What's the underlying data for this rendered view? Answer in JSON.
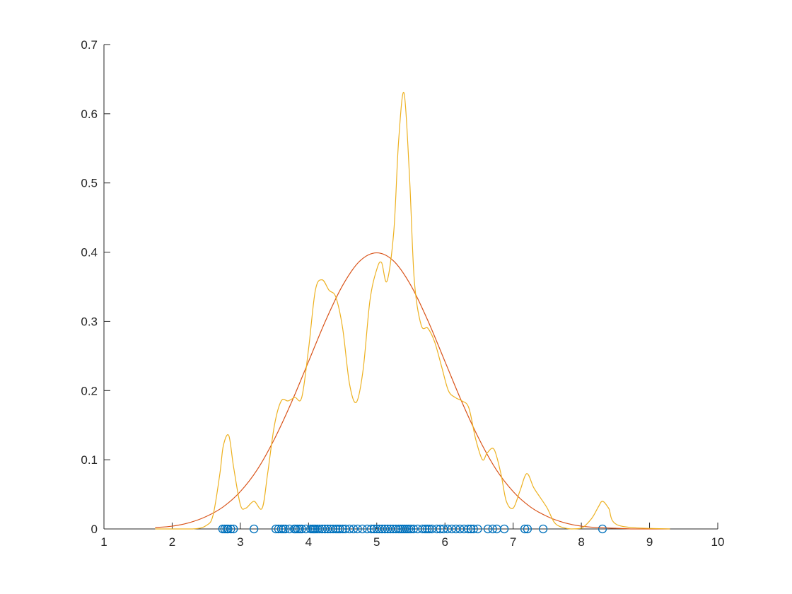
{
  "chart_data": {
    "type": "line",
    "title": "",
    "xlabel": "",
    "ylabel": "",
    "xlim": [
      1,
      10
    ],
    "ylim": [
      0,
      0.7
    ],
    "grid": false,
    "x_ticks": [
      1,
      2,
      3,
      4,
      5,
      6,
      7,
      8,
      9,
      10
    ],
    "y_ticks": [
      0,
      0.1,
      0.2,
      0.3,
      0.4,
      0.5,
      0.6,
      0.7
    ],
    "x_tick_labels": [
      "1",
      "2",
      "3",
      "4",
      "5",
      "6",
      "7",
      "8",
      "9",
      "10"
    ],
    "y_tick_labels": [
      "0",
      "0.1",
      "0.2",
      "0.3",
      "0.4",
      "0.5",
      "0.6",
      "0.7"
    ],
    "colors": {
      "samples": "#0072BD",
      "normal_pdf": "#D95319",
      "kernel_density": "#EDB120",
      "axes": "#262626"
    },
    "series": [
      {
        "role": "samples",
        "style": "markers-circle",
        "x": [
          2.74,
          2.77,
          2.8,
          2.82,
          2.86,
          2.9,
          3.2,
          3.52,
          3.56,
          3.6,
          3.63,
          3.66,
          3.72,
          3.79,
          3.81,
          3.84,
          3.87,
          3.9,
          3.96,
          4.03,
          4.06,
          4.08,
          4.1,
          4.13,
          4.16,
          4.2,
          4.24,
          4.28,
          4.32,
          4.36,
          4.4,
          4.43,
          4.46,
          4.5,
          4.54,
          4.6,
          4.66,
          4.72,
          4.79,
          4.86,
          4.92,
          4.96,
          5.0,
          5.04,
          5.08,
          5.12,
          5.16,
          5.2,
          5.24,
          5.28,
          5.32,
          5.35,
          5.38,
          5.41,
          5.44,
          5.47,
          5.5,
          5.54,
          5.6,
          5.67,
          5.71,
          5.74,
          5.77,
          5.81,
          5.88,
          5.93,
          5.98,
          6.04,
          6.1,
          6.16,
          6.22,
          6.28,
          6.34,
          6.38,
          6.42,
          6.48,
          6.63,
          6.7,
          6.76,
          6.87,
          7.17,
          7.21,
          7.44,
          8.31
        ],
        "y": [
          0,
          0,
          0,
          0,
          0,
          0,
          0,
          0,
          0,
          0,
          0,
          0,
          0,
          0,
          0,
          0,
          0,
          0,
          0,
          0,
          0,
          0,
          0,
          0,
          0,
          0,
          0,
          0,
          0,
          0,
          0,
          0,
          0,
          0,
          0,
          0,
          0,
          0,
          0,
          0,
          0,
          0,
          0,
          0,
          0,
          0,
          0,
          0,
          0,
          0,
          0,
          0,
          0,
          0,
          0,
          0,
          0,
          0,
          0,
          0,
          0,
          0,
          0,
          0,
          0,
          0,
          0,
          0,
          0,
          0,
          0,
          0,
          0,
          0,
          0,
          0,
          0,
          0,
          0,
          0,
          0,
          0,
          0,
          0
        ]
      },
      {
        "role": "normal_pdf",
        "style": "line",
        "x": [
          1.75,
          2.0,
          2.25,
          2.5,
          2.75,
          3.0,
          3.25,
          3.5,
          3.75,
          4.0,
          4.25,
          4.5,
          4.75,
          5.0,
          5.25,
          5.5,
          5.75,
          6.0,
          6.25,
          6.5,
          6.75,
          7.0,
          7.25,
          7.5,
          7.75,
          8.0,
          8.25,
          8.5,
          8.75,
          9.0,
          9.3
        ],
        "y": [
          0.002,
          0.004,
          0.009,
          0.018,
          0.032,
          0.054,
          0.086,
          0.13,
          0.183,
          0.242,
          0.301,
          0.352,
          0.387,
          0.399,
          0.387,
          0.352,
          0.301,
          0.242,
          0.183,
          0.13,
          0.086,
          0.054,
          0.032,
          0.018,
          0.009,
          0.004,
          0.002,
          0.001,
          0.0,
          0.0,
          0.0
        ]
      },
      {
        "role": "kernel_density",
        "style": "line",
        "x": [
          1.75,
          2.3,
          2.5,
          2.6,
          2.7,
          2.75,
          2.83,
          2.9,
          3.0,
          3.08,
          3.2,
          3.32,
          3.4,
          3.5,
          3.6,
          3.7,
          3.8,
          3.9,
          4.0,
          4.1,
          4.2,
          4.3,
          4.4,
          4.5,
          4.6,
          4.7,
          4.8,
          4.9,
          5.0,
          5.07,
          5.15,
          5.25,
          5.32,
          5.4,
          5.48,
          5.55,
          5.65,
          5.75,
          5.85,
          5.95,
          6.05,
          6.15,
          6.25,
          6.35,
          6.45,
          6.55,
          6.62,
          6.72,
          6.82,
          6.9,
          7.0,
          7.1,
          7.2,
          7.3,
          7.4,
          7.5,
          7.6,
          7.7,
          7.85,
          8.0,
          8.15,
          8.25,
          8.31,
          8.4,
          8.55,
          9.3
        ],
        "y": [
          0.0,
          0.0,
          0.005,
          0.02,
          0.08,
          0.12,
          0.135,
          0.09,
          0.035,
          0.03,
          0.04,
          0.03,
          0.08,
          0.15,
          0.185,
          0.185,
          0.19,
          0.19,
          0.26,
          0.345,
          0.36,
          0.345,
          0.335,
          0.29,
          0.21,
          0.183,
          0.23,
          0.33,
          0.375,
          0.385,
          0.358,
          0.43,
          0.56,
          0.63,
          0.51,
          0.36,
          0.295,
          0.29,
          0.27,
          0.235,
          0.2,
          0.19,
          0.185,
          0.175,
          0.13,
          0.1,
          0.11,
          0.115,
          0.08,
          0.04,
          0.03,
          0.055,
          0.08,
          0.06,
          0.045,
          0.03,
          0.01,
          0.003,
          0.0,
          0.001,
          0.015,
          0.032,
          0.04,
          0.03,
          0.005,
          0.0
        ]
      }
    ]
  }
}
